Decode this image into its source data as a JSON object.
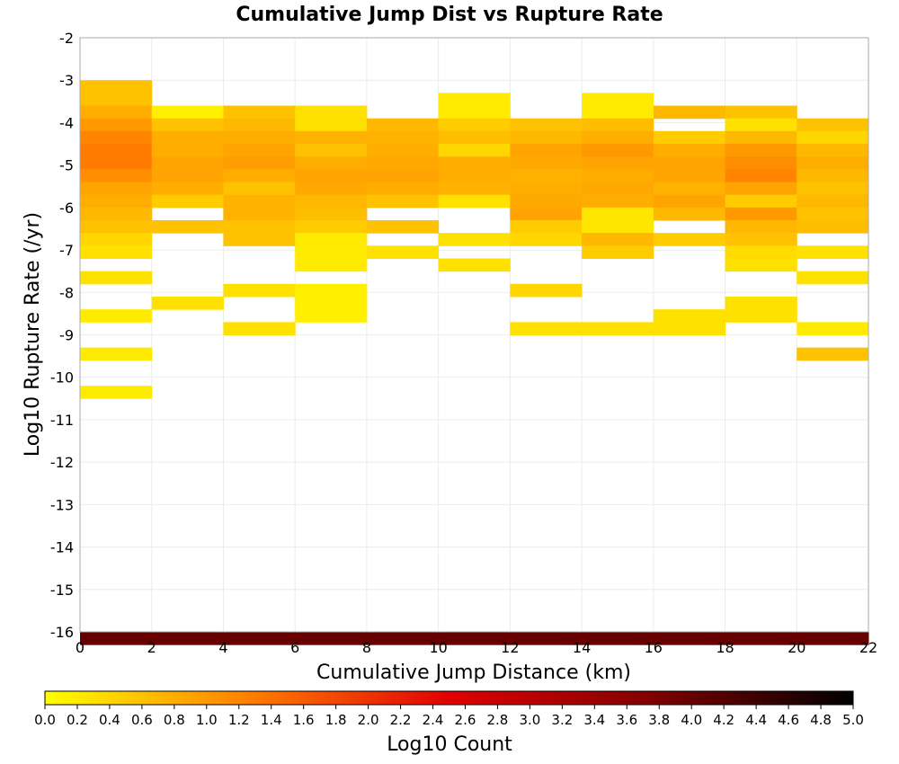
{
  "chart_data": {
    "type": "heatmap",
    "title": "Cumulative Jump Dist vs Rupture Rate",
    "xlabel": "Cumulative Jump Distance (km)",
    "ylabel": "Log10 Rupture Rate (/yr)",
    "xlim": [
      0,
      22
    ],
    "ylim": [
      -16,
      -2
    ],
    "x_ticks": [
      "0",
      "2",
      "4",
      "6",
      "8",
      "10",
      "12",
      "14",
      "16",
      "18",
      "20",
      "22"
    ],
    "y_ticks": [
      "-2",
      "-3",
      "-4",
      "-5",
      "-6",
      "-7",
      "-8",
      "-9",
      "-10",
      "-11",
      "-12",
      "-13",
      "-14",
      "-15",
      "-16"
    ],
    "x_bin_width": 2,
    "y_bin_height": 0.3,
    "grid": true,
    "colorbar": {
      "label": "Log10 Count",
      "range": [
        0,
        5
      ],
      "ticks": [
        "0.0",
        "0.2",
        "0.4",
        "0.6",
        "0.8",
        "1.0",
        "1.2",
        "1.4",
        "1.6",
        "1.8",
        "2.0",
        "2.2",
        "2.4",
        "2.6",
        "2.8",
        "3.0",
        "3.2",
        "3.4",
        "3.6",
        "3.8",
        "4.0",
        "4.2",
        "4.4",
        "4.6",
        "4.8",
        "5.0"
      ],
      "colors": [
        "#ffff00",
        "#ff8000",
        "#e00000",
        "#800000",
        "#000000"
      ]
    },
    "columns": [
      {
        "x": 0,
        "cells": [
          [
            -3.0,
            0.6
          ],
          [
            -3.3,
            0.6
          ],
          [
            -3.6,
            0.8
          ],
          [
            -3.9,
            1.0
          ],
          [
            -4.2,
            1.2
          ],
          [
            -4.5,
            1.3
          ],
          [
            -4.8,
            1.3
          ],
          [
            -5.1,
            1.1
          ],
          [
            -5.4,
            0.9
          ],
          [
            -5.7,
            0.8
          ],
          [
            -6.0,
            0.7
          ],
          [
            -6.3,
            0.6
          ],
          [
            -6.6,
            0.4
          ],
          [
            -6.9,
            0.3
          ],
          [
            -7.5,
            0.3
          ],
          [
            -8.4,
            0.2
          ],
          [
            -9.3,
            0.2
          ],
          [
            -10.2,
            0.2
          ],
          [
            -16.0,
            4.0
          ]
        ]
      },
      {
        "x": 2,
        "cells": [
          [
            -3.6,
            0.15
          ],
          [
            -3.9,
            0.6
          ],
          [
            -4.2,
            0.8
          ],
          [
            -4.5,
            0.8
          ],
          [
            -4.8,
            0.9
          ],
          [
            -5.1,
            0.9
          ],
          [
            -5.4,
            0.8
          ],
          [
            -5.7,
            0.5
          ],
          [
            -6.3,
            0.6
          ],
          [
            -8.1,
            0.3
          ],
          [
            -16.0,
            4.0
          ]
        ]
      },
      {
        "x": 4,
        "cells": [
          [
            -3.6,
            0.6
          ],
          [
            -3.9,
            0.7
          ],
          [
            -4.2,
            0.8
          ],
          [
            -4.5,
            0.9
          ],
          [
            -4.8,
            0.95
          ],
          [
            -5.1,
            0.8
          ],
          [
            -5.4,
            0.6
          ],
          [
            -5.7,
            0.75
          ],
          [
            -6.0,
            0.75
          ],
          [
            -6.3,
            0.6
          ],
          [
            -6.6,
            0.6
          ],
          [
            -7.8,
            0.3
          ],
          [
            -8.7,
            0.3
          ],
          [
            -16.0,
            4.0
          ]
        ]
      },
      {
        "x": 6,
        "cells": [
          [
            -3.6,
            0.3
          ],
          [
            -3.9,
            0.3
          ],
          [
            -4.2,
            0.75
          ],
          [
            -4.5,
            0.6
          ],
          [
            -4.8,
            0.8
          ],
          [
            -5.1,
            0.9
          ],
          [
            -5.4,
            0.85
          ],
          [
            -5.7,
            0.7
          ],
          [
            -6.0,
            0.65
          ],
          [
            -6.3,
            0.5
          ],
          [
            -6.6,
            0.2
          ],
          [
            -6.9,
            0.2
          ],
          [
            -7.2,
            0.2
          ],
          [
            -7.8,
            0.15
          ],
          [
            -8.1,
            0.15
          ],
          [
            -8.4,
            0.15
          ],
          [
            -16.0,
            4.0
          ]
        ]
      },
      {
        "x": 8,
        "cells": [
          [
            -3.9,
            0.7
          ],
          [
            -4.2,
            0.75
          ],
          [
            -4.5,
            0.8
          ],
          [
            -4.8,
            0.85
          ],
          [
            -5.1,
            0.9
          ],
          [
            -5.4,
            0.8
          ],
          [
            -5.7,
            0.6
          ],
          [
            -6.3,
            0.6
          ],
          [
            -6.9,
            0.3
          ],
          [
            -16.0,
            4.0
          ]
        ]
      },
      {
        "x": 10,
        "cells": [
          [
            -3.3,
            0.2
          ],
          [
            -3.6,
            0.2
          ],
          [
            -3.9,
            0.5
          ],
          [
            -4.2,
            0.65
          ],
          [
            -4.5,
            0.4
          ],
          [
            -4.8,
            0.8
          ],
          [
            -5.1,
            0.8
          ],
          [
            -5.4,
            0.75
          ],
          [
            -5.7,
            0.3
          ],
          [
            -6.6,
            0.3
          ],
          [
            -7.2,
            0.3
          ],
          [
            -16.0,
            4.0
          ]
        ]
      },
      {
        "x": 12,
        "cells": [
          [
            -3.9,
            0.6
          ],
          [
            -4.2,
            0.7
          ],
          [
            -4.5,
            0.9
          ],
          [
            -4.8,
            0.85
          ],
          [
            -5.1,
            0.75
          ],
          [
            -5.4,
            0.8
          ],
          [
            -5.7,
            0.85
          ],
          [
            -6.0,
            0.9
          ],
          [
            -6.3,
            0.5
          ],
          [
            -6.6,
            0.4
          ],
          [
            -7.8,
            0.4
          ],
          [
            -8.7,
            0.3
          ],
          [
            -16.0,
            4.0
          ]
        ]
      },
      {
        "x": 14,
        "cells": [
          [
            -3.3,
            0.2
          ],
          [
            -3.6,
            0.2
          ],
          [
            -3.9,
            0.65
          ],
          [
            -4.2,
            0.8
          ],
          [
            -4.5,
            1.0
          ],
          [
            -4.8,
            0.9
          ],
          [
            -5.1,
            0.8
          ],
          [
            -5.4,
            0.85
          ],
          [
            -5.7,
            0.8
          ],
          [
            -6.0,
            0.25
          ],
          [
            -6.3,
            0.25
          ],
          [
            -6.6,
            0.7
          ],
          [
            -6.9,
            0.5
          ],
          [
            -8.7,
            0.3
          ],
          [
            -16.0,
            4.0
          ]
        ]
      },
      {
        "x": 16,
        "cells": [
          [
            -3.6,
            0.7
          ],
          [
            -4.2,
            0.5
          ],
          [
            -4.5,
            0.8
          ],
          [
            -4.8,
            0.9
          ],
          [
            -5.1,
            0.9
          ],
          [
            -5.4,
            0.75
          ],
          [
            -5.7,
            0.9
          ],
          [
            -6.0,
            0.7
          ],
          [
            -6.6,
            0.5
          ],
          [
            -8.4,
            0.3
          ],
          [
            -8.7,
            0.3
          ],
          [
            -16.0,
            4.0
          ]
        ]
      },
      {
        "x": 18,
        "cells": [
          [
            -3.6,
            0.6
          ],
          [
            -3.9,
            0.3
          ],
          [
            -4.2,
            0.7
          ],
          [
            -4.5,
            1.0
          ],
          [
            -4.8,
            1.1
          ],
          [
            -5.1,
            1.2
          ],
          [
            -5.4,
            0.9
          ],
          [
            -5.7,
            0.5
          ],
          [
            -6.0,
            1.0
          ],
          [
            -6.3,
            0.7
          ],
          [
            -6.6,
            0.6
          ],
          [
            -6.9,
            0.35
          ],
          [
            -7.2,
            0.3
          ],
          [
            -8.1,
            0.3
          ],
          [
            -8.4,
            0.3
          ],
          [
            -16.0,
            4.0
          ]
        ]
      },
      {
        "x": 20,
        "cells": [
          [
            -3.9,
            0.6
          ],
          [
            -4.2,
            0.4
          ],
          [
            -4.5,
            0.7
          ],
          [
            -4.8,
            0.8
          ],
          [
            -5.1,
            0.7
          ],
          [
            -5.4,
            0.6
          ],
          [
            -5.7,
            0.7
          ],
          [
            -6.0,
            0.6
          ],
          [
            -6.3,
            0.65
          ],
          [
            -6.9,
            0.3
          ],
          [
            -7.5,
            0.3
          ],
          [
            -8.7,
            0.2
          ],
          [
            -9.3,
            0.6
          ],
          [
            -16.0,
            4.0
          ]
        ]
      }
    ]
  }
}
